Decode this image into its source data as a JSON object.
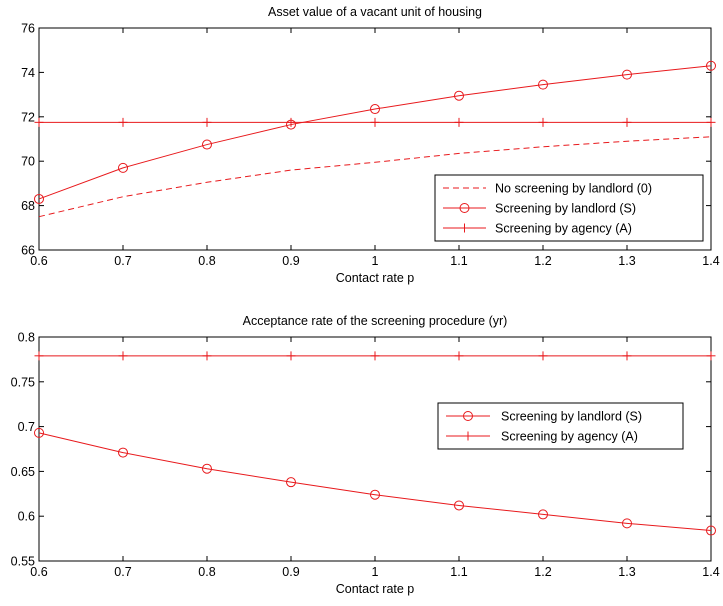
{
  "colors": {
    "series": "#e8191c",
    "axis": "#000000",
    "background": "#ffffff"
  },
  "chart_data": [
    {
      "type": "line",
      "title": "Asset value of a vacant unit of housing",
      "xlabel": "Contact rate p",
      "ylabel": "",
      "xlim": [
        0.6,
        1.4
      ],
      "ylim": [
        66,
        76
      ],
      "xticks": [
        0.6,
        0.7,
        0.8,
        0.9,
        1.0,
        1.1,
        1.2,
        1.3,
        1.4
      ],
      "xtick_labels": [
        "0.6",
        "0.7",
        "0.8",
        "0.9",
        "1",
        "1.1",
        "1.2",
        "1.3",
        "1.4"
      ],
      "yticks": [
        66,
        68,
        70,
        72,
        74,
        76
      ],
      "ytick_labels": [
        "66",
        "68",
        "70",
        "72",
        "74",
        "76"
      ],
      "grid": false,
      "legend_position": "bottom-right",
      "x": [
        0.6,
        0.7,
        0.8,
        0.9,
        1.0,
        1.1,
        1.2,
        1.3,
        1.4
      ],
      "series": [
        {
          "name": "No screening by landlord (0)",
          "style": "dashed",
          "marker": "none",
          "values": [
            67.5,
            68.4,
            69.05,
            69.6,
            69.95,
            70.35,
            70.65,
            70.9,
            71.1
          ]
        },
        {
          "name": "Screening by landlord (S)",
          "style": "solid",
          "marker": "circle",
          "values": [
            68.3,
            69.7,
            70.75,
            71.65,
            72.35,
            72.95,
            73.45,
            73.9,
            74.3
          ]
        },
        {
          "name": "Screening by agency (A)",
          "style": "solid",
          "marker": "plus",
          "values": [
            71.75,
            71.75,
            71.75,
            71.75,
            71.75,
            71.75,
            71.75,
            71.75,
            71.75
          ]
        }
      ]
    },
    {
      "type": "line",
      "title": "Acceptance rate of the screening procedure (yr)",
      "xlabel": "Contact rate p",
      "ylabel": "",
      "xlim": [
        0.6,
        1.4
      ],
      "ylim": [
        0.55,
        0.8
      ],
      "xticks": [
        0.6,
        0.7,
        0.8,
        0.9,
        1.0,
        1.1,
        1.2,
        1.3,
        1.4
      ],
      "xtick_labels": [
        "0.6",
        "0.7",
        "0.8",
        "0.9",
        "1",
        "1.1",
        "1.2",
        "1.3",
        "1.4"
      ],
      "yticks": [
        0.55,
        0.6,
        0.65,
        0.7,
        0.75,
        0.8
      ],
      "ytick_labels": [
        "0.55",
        "0.6",
        "0.65",
        "0.7",
        "0.75",
        "0.8"
      ],
      "grid": false,
      "legend_position": "center-right",
      "x": [
        0.6,
        0.7,
        0.8,
        0.9,
        1.0,
        1.1,
        1.2,
        1.3,
        1.4
      ],
      "series": [
        {
          "name": "Screening by landlord (S)",
          "style": "solid",
          "marker": "circle",
          "values": [
            0.693,
            0.671,
            0.653,
            0.638,
            0.624,
            0.612,
            0.602,
            0.592,
            0.584
          ]
        },
        {
          "name": "Screening by agency (A)",
          "style": "solid",
          "marker": "plus",
          "values": [
            0.779,
            0.779,
            0.779,
            0.779,
            0.779,
            0.779,
            0.779,
            0.779,
            0.779
          ]
        }
      ]
    }
  ]
}
